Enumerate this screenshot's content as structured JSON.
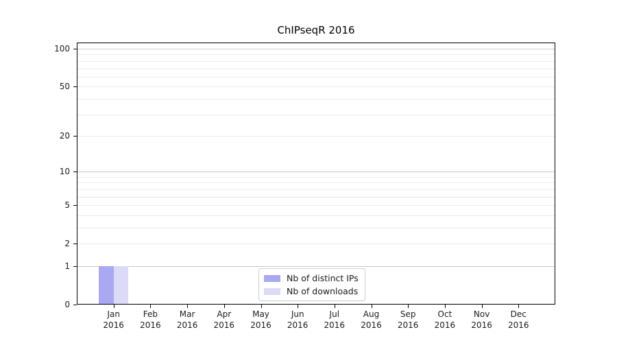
{
  "chart_data": {
    "type": "bar",
    "title": "ChIPseqR 2016",
    "year": "2016",
    "months": [
      "Jan",
      "Feb",
      "Mar",
      "Apr",
      "May",
      "Jun",
      "Jul",
      "Aug",
      "Sep",
      "Oct",
      "Nov",
      "Dec"
    ],
    "series": [
      {
        "name": "Nb of distinct IPs",
        "color": "#a9a9f3",
        "values": [
          1,
          0,
          0,
          0,
          0,
          0,
          0,
          0,
          0,
          0,
          0,
          0
        ]
      },
      {
        "name": "Nb of downloads",
        "color": "#dbdbf8",
        "values": [
          1,
          0,
          0,
          0,
          0,
          0,
          0,
          0,
          0,
          0,
          0,
          0
        ]
      }
    ],
    "y_ticks": [
      0,
      1,
      2,
      5,
      10,
      20,
      50,
      100
    ],
    "y_scale": "log1p",
    "ylim": [
      0,
      112
    ],
    "grid": true,
    "grid_major_values": [
      1,
      10,
      100
    ],
    "grid_minor_values": [
      2,
      3,
      4,
      5,
      6,
      7,
      8,
      9,
      20,
      30,
      40,
      50,
      60,
      70,
      80,
      90
    ],
    "legend_position": "bottom-center",
    "xlabel": "",
    "ylabel": ""
  },
  "colors": {
    "background": "#ffffff",
    "grid_minor": "#ebebeb",
    "grid_major": "#c9c9c9",
    "spine": "#000000",
    "text": "#1a1a1a",
    "legend_border": "#cccccc"
  }
}
